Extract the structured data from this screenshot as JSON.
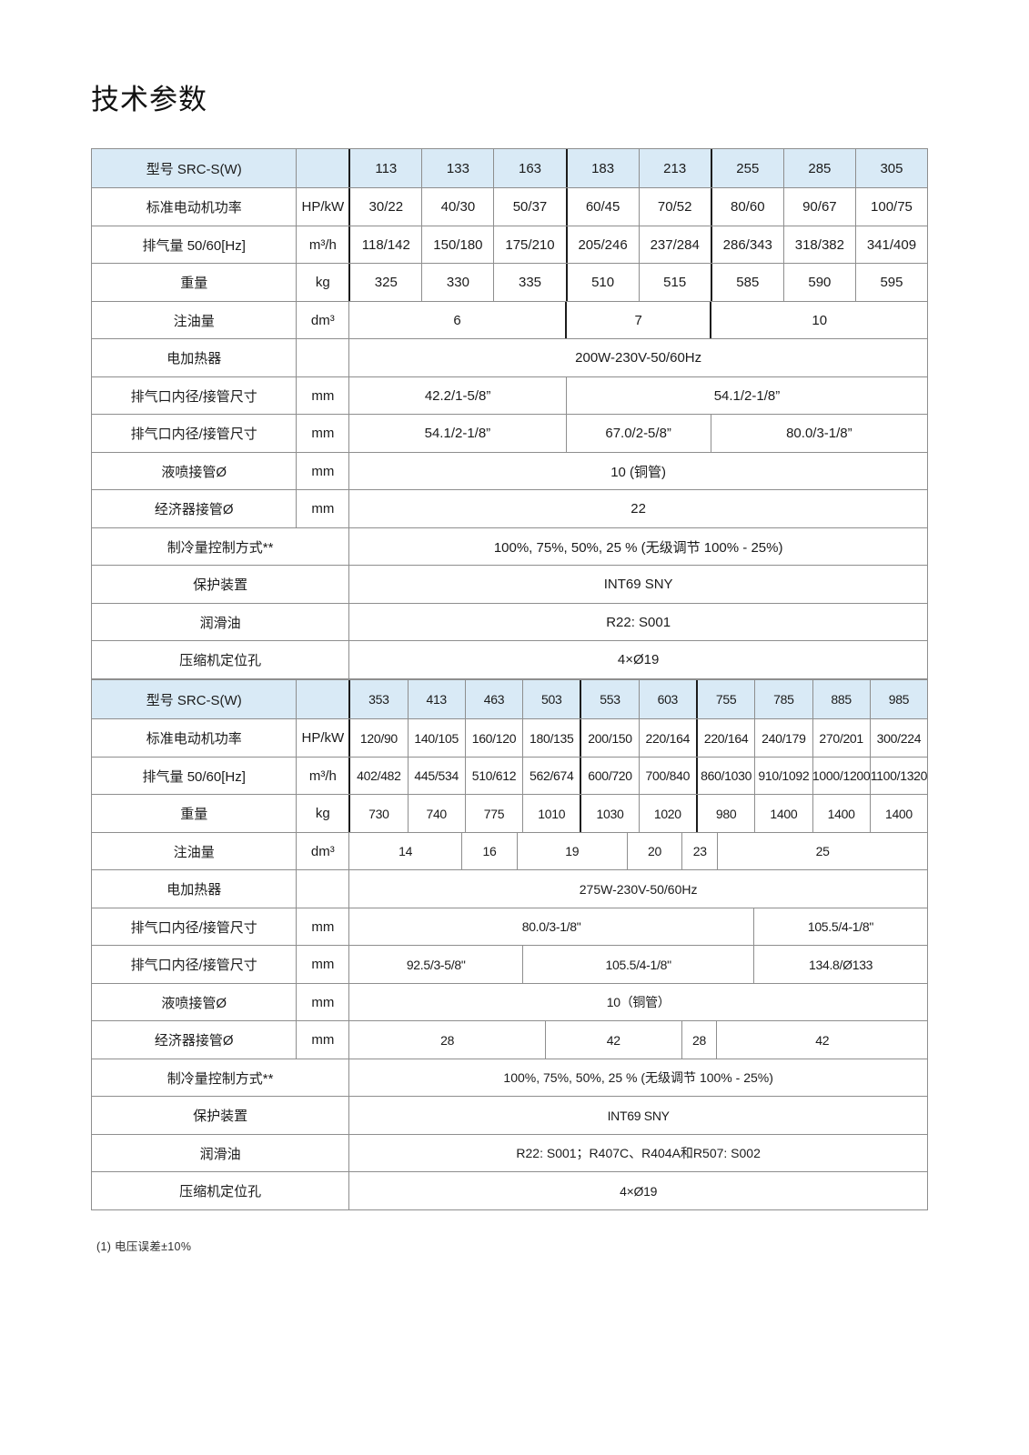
{
  "page": {
    "title": "技术参数",
    "footnote": "(1)  电压误差±10%"
  },
  "colors": {
    "header_bg": "#d9eaf6",
    "grid_border": "#8e8e8e",
    "group_divider": "#1c1c1c",
    "text": "#1b1b1b"
  },
  "tables": [
    {
      "header": {
        "label": "型号 SRC-S(W)",
        "unit": "",
        "models": [
          "113",
          "133",
          "163",
          "183",
          "213",
          "255",
          "285",
          "305"
        ]
      },
      "rows": [
        {
          "label": "标准电动机功率",
          "unit": "HP/kW",
          "cells": [
            {
              "t": "30/22"
            },
            {
              "t": "40/30"
            },
            {
              "t": "50/37"
            },
            {
              "t": "60/45"
            },
            {
              "t": "70/52"
            },
            {
              "t": "80/60"
            },
            {
              "t": "90/67"
            },
            {
              "t": "100/75"
            }
          ]
        },
        {
          "label": "排气量 50/60[Hz]",
          "unit": "m³/h",
          "cells": [
            {
              "t": "118/142"
            },
            {
              "t": "150/180"
            },
            {
              "t": "175/210"
            },
            {
              "t": "205/246"
            },
            {
              "t": "237/284"
            },
            {
              "t": "286/343"
            },
            {
              "t": "318/382"
            },
            {
              "t": "341/409"
            }
          ]
        },
        {
          "label": "重量",
          "unit": "kg",
          "cells": [
            {
              "t": "325"
            },
            {
              "t": "330"
            },
            {
              "t": "335"
            },
            {
              "t": "510"
            },
            {
              "t": "515"
            },
            {
              "t": "585"
            },
            {
              "t": "590"
            },
            {
              "t": "595"
            }
          ]
        },
        {
          "label": "注油量",
          "unit": "dm³",
          "cells": [
            {
              "t": "6",
              "s": 3
            },
            {
              "t": "7",
              "s": 2
            },
            {
              "t": "10",
              "s": 3
            }
          ]
        },
        {
          "label": "电加热器",
          "unit": "",
          "cells": [
            {
              "t": "200W-230V-50/60Hz",
              "s": 8
            }
          ]
        },
        {
          "label": "排气口内径/接管尺寸",
          "unit": "mm",
          "cells": [
            {
              "t": "42.2/1-5/8”",
              "s": 3
            },
            {
              "t": "54.1/2-1/8”",
              "s": 5
            }
          ]
        },
        {
          "label": "排气口内径/接管尺寸",
          "unit": "mm",
          "cells": [
            {
              "t": "54.1/2-1/8”",
              "s": 3
            },
            {
              "t": "67.0/2-5/8”",
              "s": 2
            },
            {
              "t": "80.0/3-1/8”",
              "s": 3
            }
          ]
        },
        {
          "label": "液喷接管Ø",
          "unit": "mm",
          "cells": [
            {
              "t": "10 (铜管)",
              "s": 8
            }
          ]
        },
        {
          "label": "经济器接管Ø",
          "unit": "mm",
          "cells": [
            {
              "t": "22",
              "s": 8
            }
          ]
        },
        {
          "label": "制冷量控制方式**",
          "cells": [
            {
              "t": "100%, 75%, 50%, 25 % (无级调节 100% - 25%)",
              "s": 8
            }
          ]
        },
        {
          "label": "保护装置",
          "cells": [
            {
              "t": "INT69 SNY",
              "s": 8
            }
          ]
        },
        {
          "label": "润滑油",
          "cells": [
            {
              "t": "R22: S001",
              "s": 8
            }
          ]
        },
        {
          "label": "压缩机定位孔",
          "cells": [
            {
              "t": "4×Ø19",
              "s": 8
            }
          ]
        }
      ]
    },
    {
      "header": {
        "label": "型号 SRC-S(W)",
        "unit": "",
        "models": [
          "353",
          "413",
          "463",
          "503",
          "553",
          "603",
          "755",
          "785",
          "885",
          "985"
        ]
      },
      "rows": [
        {
          "label": "标准电动机功率",
          "unit": "HP/kW",
          "cells": [
            {
              "t": "120/90"
            },
            {
              "t": "140/105"
            },
            {
              "t": "160/120"
            },
            {
              "t": "180/135"
            },
            {
              "t": "200/150"
            },
            {
              "t": "220/164"
            },
            {
              "t": "220/164"
            },
            {
              "t": "240/179"
            },
            {
              "t": "270/201"
            },
            {
              "t": "300/224"
            }
          ]
        },
        {
          "label": "排气量 50/60[Hz]",
          "unit": "m³/h",
          "cells": [
            {
              "t": "402/482"
            },
            {
              "t": "445/534"
            },
            {
              "t": "510/612"
            },
            {
              "t": "562/674"
            },
            {
              "t": "600/720"
            },
            {
              "t": "700/840"
            },
            {
              "t": "860/1030"
            },
            {
              "t": "910/1092"
            },
            {
              "t": "1000/1200"
            },
            {
              "t": "1100/1320"
            }
          ]
        },
        {
          "label": "重量",
          "unit": "kg",
          "cells": [
            {
              "t": "730"
            },
            {
              "t": "740"
            },
            {
              "t": "775"
            },
            {
              "t": "1010"
            },
            {
              "t": "1030"
            },
            {
              "t": "1020"
            },
            {
              "t": "980"
            },
            {
              "t": "1400"
            },
            {
              "t": "1400"
            },
            {
              "t": "1400"
            }
          ]
        },
        {
          "label": "注油量",
          "unit": "dm³",
          "cells": [
            {
              "t": "14",
              "s": 1.95
            },
            {
              "t": "16",
              "s": 0.95
            },
            {
              "t": "19",
              "s": 1.9
            },
            {
              "t": "20",
              "s": 0.95
            },
            {
              "t": "23",
              "s": 0.6
            },
            {
              "t": "25",
              "s": 3.65
            }
          ]
        },
        {
          "label": "电加热器",
          "unit": "",
          "cells": [
            {
              "t": "275W-230V-50/60Hz",
              "s": 10
            }
          ]
        },
        {
          "label": "排气口内径/接管尺寸",
          "unit": "mm",
          "cells": [
            {
              "t": "80.0/3-1/8\"",
              "s": 7
            },
            {
              "t": "105.5/4-1/8\"",
              "s": 3
            }
          ]
        },
        {
          "label": "排气口内径/接管尺寸",
          "unit": "mm",
          "cells": [
            {
              "t": "92.5/3-5/8\"",
              "s": 3
            },
            {
              "t": "105.5/4-1/8\"",
              "s": 4
            },
            {
              "t": "134.8/Ø133",
              "s": 3
            }
          ]
        },
        {
          "label": "液喷接管Ø",
          "unit": "mm",
          "cells": [
            {
              "t": "10（铜管）",
              "s": 10
            }
          ]
        },
        {
          "label": "经济器接管Ø",
          "unit": "mm",
          "cells": [
            {
              "t": "28",
              "s": 3.4
            },
            {
              "t": "42",
              "s": 2.35
            },
            {
              "t": "28",
              "s": 0.6
            },
            {
              "t": "42",
              "s": 3.65
            }
          ]
        },
        {
          "label": "制冷量控制方式**",
          "cells": [
            {
              "t": "100%, 75%, 50%, 25 % (无级调节 100% - 25%)",
              "s": 10
            }
          ]
        },
        {
          "label": "保护装置",
          "cells": [
            {
              "t": "INT69 SNY",
              "s": 10
            }
          ]
        },
        {
          "label": "润滑油",
          "cells": [
            {
              "t": "R22: S001；R407C、R404A和R507: S002",
              "s": 10
            }
          ]
        },
        {
          "label": "压缩机定位孔",
          "cells": [
            {
              "t": "4×Ø19",
              "s": 10
            }
          ]
        }
      ]
    }
  ]
}
